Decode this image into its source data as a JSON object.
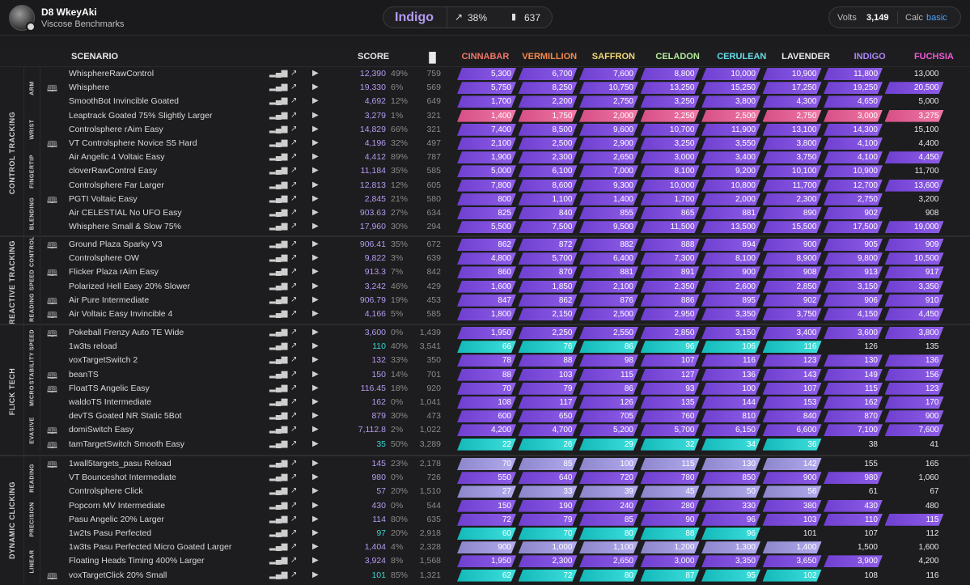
{
  "user": {
    "name": "D8 WkeyAki",
    "benchmark": "Viscose Benchmarks"
  },
  "rank": {
    "name": "Indigo",
    "percent": "38%",
    "score": "637"
  },
  "volts": {
    "label": "Volts",
    "value": "3,149",
    "calc_label": "Calc",
    "calc_value": "basic"
  },
  "header": {
    "scenario": "SCENARIO",
    "score": "SCORE"
  },
  "ranks": [
    {
      "name": "CINNABAR",
      "color": "#f0776a"
    },
    {
      "name": "VERMILLION",
      "color": "#f7894a"
    },
    {
      "name": "SAFFRON",
      "color": "#f2d778"
    },
    {
      "name": "CELADON",
      "color": "#b4eb9c"
    },
    {
      "name": "CERULEAN",
      "color": "#66dde9"
    },
    {
      "name": "LAVENDER",
      "color": "#e8e8e8"
    },
    {
      "name": "INDIGO",
      "color": "#a987f5"
    },
    {
      "name": "FUCHSIA",
      "color": "#f05ad6"
    }
  ],
  "colors": {
    "purple": "#7a4ad8",
    "pink": "#e3588f",
    "cyan": "#18c2c3",
    "lavender": "#9c94d6",
    "cyanText": "#36d6d2"
  },
  "categories": [
    {
      "name": "CONTROL TRACKING",
      "subs": [
        "ARM",
        "WRIST",
        "FINGERTIP",
        "BLENDING"
      ]
    },
    {
      "name": "REACTIVE TRACKING",
      "subs": [
        "CONTROL",
        "SPEED",
        "READING"
      ]
    },
    {
      "name": "FLICK TECH",
      "subs": [
        "SPEED",
        "STABILITY",
        "MICRO",
        "EVASIVE"
      ]
    },
    {
      "name": "DYNAMIC CLICKING",
      "subs": [
        "READING",
        "PRECISION",
        "LINEAR"
      ]
    }
  ],
  "rows": [
    {
      "name": "WhisphereRawControl",
      "score": "12,390",
      "pct": "49%",
      "plays": "759",
      "book": false,
      "style": "purple",
      "fill": 7,
      "th": [
        "5,300",
        "6,700",
        "7,600",
        "8,800",
        "10,000",
        "10,900",
        "11,800",
        "13,000"
      ]
    },
    {
      "name": "Whisphere",
      "score": "19,330",
      "pct": "6%",
      "plays": "569",
      "book": true,
      "style": "purple",
      "fill": 8,
      "th": [
        "5,750",
        "8,250",
        "10,750",
        "13,250",
        "15,250",
        "17,250",
        "19,250",
        "20,500"
      ]
    },
    {
      "name": "SmoothBot Invincible Goated",
      "score": "4,692",
      "pct": "12%",
      "plays": "649",
      "book": false,
      "style": "purple",
      "fill": 7,
      "th": [
        "1,700",
        "2,200",
        "2,750",
        "3,250",
        "3,800",
        "4,300",
        "4,650",
        "5,000"
      ]
    },
    {
      "name": "Leaptrack Goated 75% Slightly Larger",
      "score": "3,279",
      "pct": "1%",
      "plays": "321",
      "book": false,
      "style": "pink",
      "fill": 8,
      "th": [
        "1,400",
        "1,750",
        "2,000",
        "2,250",
        "2,500",
        "2,750",
        "3,000",
        "3,275"
      ]
    },
    {
      "name": "Controlsphere rAim Easy",
      "score": "14,829",
      "pct": "66%",
      "plays": "321",
      "book": false,
      "style": "purple",
      "fill": 7,
      "th": [
        "7,400",
        "8,500",
        "9,600",
        "10,700",
        "11,900",
        "13,100",
        "14,300",
        "15,100"
      ]
    },
    {
      "name": "VT Controlsphere Novice S5 Hard",
      "score": "4,196",
      "pct": "32%",
      "plays": "497",
      "book": true,
      "style": "purple",
      "fill": 7,
      "th": [
        "2,100",
        "2,500",
        "2,900",
        "3,250",
        "3,550",
        "3,800",
        "4,100",
        "4,400"
      ]
    },
    {
      "name": "Air Angelic 4 Voltaic Easy",
      "score": "4,412",
      "pct": "89%",
      "plays": "787",
      "book": false,
      "style": "purple",
      "fill": 8,
      "th": [
        "1,900",
        "2,300",
        "2,650",
        "3,000",
        "3,400",
        "3,750",
        "4,100",
        "4,450"
      ]
    },
    {
      "name": "cloverRawControl Easy",
      "score": "11,184",
      "pct": "35%",
      "plays": "585",
      "book": false,
      "style": "purple",
      "fill": 7,
      "th": [
        "5,000",
        "6,100",
        "7,000",
        "8,100",
        "9,200",
        "10,100",
        "10,900",
        "11,700"
      ]
    },
    {
      "name": "Controlsphere Far Larger",
      "score": "12,813",
      "pct": "12%",
      "plays": "605",
      "book": false,
      "style": "purple",
      "fill": 8,
      "th": [
        "7,800",
        "8,600",
        "9,300",
        "10,000",
        "10,800",
        "11,700",
        "12,700",
        "13,600"
      ]
    },
    {
      "name": "PGTI Voltaic Easy",
      "score": "2,845",
      "pct": "21%",
      "plays": "580",
      "book": true,
      "style": "purple",
      "fill": 7,
      "th": [
        "800",
        "1,100",
        "1,400",
        "1,700",
        "2,000",
        "2,300",
        "2,750",
        "3,200"
      ]
    },
    {
      "name": "Air CELESTIAL No UFO Easy",
      "score": "903.63",
      "pct": "27%",
      "plays": "634",
      "book": false,
      "style": "purple",
      "fill": 7,
      "th": [
        "825",
        "840",
        "855",
        "865",
        "881",
        "890",
        "902",
        "908"
      ]
    },
    {
      "name": "Whisphere Small & Slow 75%",
      "score": "17,960",
      "pct": "30%",
      "plays": "294",
      "book": false,
      "style": "purple",
      "fill": 8,
      "th": [
        "5,500",
        "7,500",
        "9,500",
        "11,500",
        "13,500",
        "15,500",
        "17,500",
        "19,000"
      ]
    },
    {
      "name": "Ground Plaza Sparky V3",
      "score": "906.41",
      "pct": "35%",
      "plays": "672",
      "book": true,
      "style": "purple",
      "fill": 8,
      "th": [
        "862",
        "872",
        "882",
        "888",
        "894",
        "900",
        "905",
        "909"
      ]
    },
    {
      "name": "Controlsphere OW",
      "score": "9,822",
      "pct": "3%",
      "plays": "639",
      "book": false,
      "style": "purple",
      "fill": 8,
      "th": [
        "4,800",
        "5,700",
        "6,400",
        "7,300",
        "8,100",
        "8,900",
        "9,800",
        "10,500"
      ]
    },
    {
      "name": "Flicker Plaza rAim Easy",
      "score": "913.3",
      "pct": "7%",
      "plays": "842",
      "book": true,
      "style": "purple",
      "fill": 8,
      "th": [
        "860",
        "870",
        "881",
        "891",
        "900",
        "908",
        "913",
        "917"
      ]
    },
    {
      "name": "Polarized Hell Easy 20% Slower",
      "score": "3,242",
      "pct": "46%",
      "plays": "429",
      "book": false,
      "style": "purple",
      "fill": 8,
      "th": [
        "1,600",
        "1,850",
        "2,100",
        "2,350",
        "2,600",
        "2,850",
        "3,150",
        "3,350"
      ]
    },
    {
      "name": "Air Pure Intermediate",
      "score": "906.79",
      "pct": "19%",
      "plays": "453",
      "book": true,
      "style": "purple",
      "fill": 8,
      "th": [
        "847",
        "862",
        "876",
        "886",
        "895",
        "902",
        "906",
        "910"
      ]
    },
    {
      "name": "Air Voltaic Easy Invincible 4",
      "score": "4,166",
      "pct": "5%",
      "plays": "585",
      "book": true,
      "style": "purple",
      "fill": 8,
      "th": [
        "1,800",
        "2,150",
        "2,500",
        "2,950",
        "3,350",
        "3,750",
        "4,150",
        "4,450"
      ]
    },
    {
      "name": "Pokeball Frenzy Auto TE Wide",
      "score": "3,600",
      "pct": "0%",
      "plays": "1,439",
      "book": true,
      "style": "purple",
      "fill": 8,
      "th": [
        "1,950",
        "2,250",
        "2,550",
        "2,850",
        "3,150",
        "3,400",
        "3,600",
        "3,800"
      ]
    },
    {
      "name": "1w3ts reload",
      "score": "110",
      "pct": "40%",
      "plays": "3,541",
      "book": false,
      "style": "cyan",
      "fill": 6,
      "th": [
        "66",
        "76",
        "86",
        "96",
        "106",
        "116",
        "126",
        "135"
      ]
    },
    {
      "name": "voxTargetSwitch 2",
      "score": "132",
      "pct": "33%",
      "plays": "350",
      "book": false,
      "style": "purple",
      "fill": 8,
      "th": [
        "78",
        "88",
        "98",
        "107",
        "116",
        "123",
        "130",
        "136"
      ]
    },
    {
      "name": "beanTS",
      "score": "150",
      "pct": "14%",
      "plays": "701",
      "book": true,
      "style": "purple",
      "fill": 8,
      "th": [
        "88",
        "103",
        "115",
        "127",
        "136",
        "143",
        "149",
        "156"
      ]
    },
    {
      "name": "FloatTS Angelic Easy",
      "score": "116.45",
      "pct": "18%",
      "plays": "920",
      "book": true,
      "style": "purple",
      "fill": 8,
      "th": [
        "70",
        "79",
        "86",
        "93",
        "100",
        "107",
        "115",
        "123"
      ]
    },
    {
      "name": "waldoTS Intermediate",
      "score": "162",
      "pct": "0%",
      "plays": "1,041",
      "book": false,
      "style": "purple",
      "fill": 8,
      "th": [
        "108",
        "117",
        "126",
        "135",
        "144",
        "153",
        "162",
        "170"
      ]
    },
    {
      "name": "devTS Goated NR Static 5Bot",
      "score": "879",
      "pct": "30%",
      "plays": "473",
      "book": false,
      "style": "purple",
      "fill": 8,
      "th": [
        "600",
        "650",
        "705",
        "760",
        "810",
        "840",
        "870",
        "900"
      ]
    },
    {
      "name": "domiSwitch Easy",
      "score": "7,112.8",
      "pct": "2%",
      "plays": "1,022",
      "book": true,
      "style": "purple",
      "fill": 8,
      "th": [
        "4,200",
        "4,700",
        "5,200",
        "5,700",
        "6,150",
        "6,600",
        "7,100",
        "7,600"
      ]
    },
    {
      "name": "tamTargetSwitch Smooth Easy",
      "score": "35",
      "pct": "50%",
      "plays": "3,289",
      "book": true,
      "style": "cyan",
      "fill": 6,
      "th": [
        "22",
        "26",
        "29",
        "32",
        "34",
        "36",
        "38",
        "41"
      ]
    },
    {
      "name": "1wall5targets_pasu Reload",
      "score": "145",
      "pct": "23%",
      "plays": "2,178",
      "book": true,
      "style": "lavender",
      "fill": 6,
      "th": [
        "70",
        "85",
        "100",
        "115",
        "130",
        "142",
        "155",
        "165"
      ]
    },
    {
      "name": "VT Bounceshot Intermediate",
      "score": "980",
      "pct": "0%",
      "plays": "726",
      "book": false,
      "style": "purple",
      "fill": 7,
      "th": [
        "550",
        "640",
        "720",
        "780",
        "850",
        "900",
        "980",
        "1,060"
      ]
    },
    {
      "name": "Controlsphere Click",
      "score": "57",
      "pct": "20%",
      "plays": "1,510",
      "book": false,
      "style": "lavender",
      "fill": 6,
      "th": [
        "27",
        "33",
        "39",
        "45",
        "50",
        "56",
        "61",
        "67"
      ]
    },
    {
      "name": "Popcorn MV Intermediate",
      "score": "430",
      "pct": "0%",
      "plays": "544",
      "book": false,
      "style": "purple",
      "fill": 7,
      "th": [
        "150",
        "190",
        "240",
        "280",
        "330",
        "380",
        "430",
        "480"
      ]
    },
    {
      "name": "Pasu Angelic 20% Larger",
      "score": "114",
      "pct": "80%",
      "plays": "635",
      "book": false,
      "style": "purple",
      "fill": 8,
      "th": [
        "72",
        "79",
        "85",
        "90",
        "96",
        "103",
        "110",
        "115"
      ]
    },
    {
      "name": "1w2ts Pasu Perfected",
      "score": "97",
      "pct": "20%",
      "plays": "2,918",
      "book": false,
      "style": "cyan",
      "fill": 5,
      "th": [
        "60",
        "70",
        "80",
        "88",
        "96",
        "101",
        "107",
        "112"
      ]
    },
    {
      "name": "1w3ts Pasu Perfected Micro Goated Larger",
      "score": "1,404",
      "pct": "4%",
      "plays": "2,328",
      "book": false,
      "style": "lavender",
      "fill": 6,
      "th": [
        "900",
        "1,000",
        "1,100",
        "1,200",
        "1,300",
        "1,400",
        "1,500",
        "1,600"
      ]
    },
    {
      "name": "Floating Heads Timing 400% Larger",
      "score": "3,924",
      "pct": "8%",
      "plays": "1,568",
      "book": false,
      "style": "purple",
      "fill": 7,
      "th": [
        "1,950",
        "2,300",
        "2,650",
        "3,000",
        "3,350",
        "3,650",
        "3,900",
        "4,200"
      ]
    },
    {
      "name": "voxTargetClick 20% Small",
      "score": "101",
      "pct": "85%",
      "plays": "1,321",
      "book": true,
      "style": "cyan",
      "fill": 6,
      "th": [
        "62",
        "72",
        "80",
        "87",
        "95",
        "102",
        "108",
        "116"
      ]
    }
  ]
}
